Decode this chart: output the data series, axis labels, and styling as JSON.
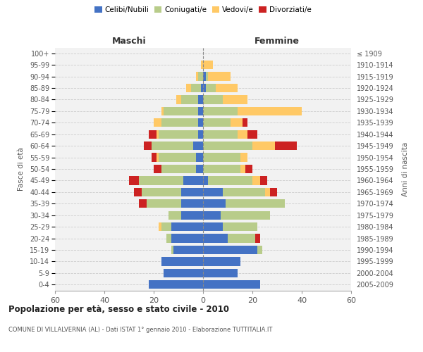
{
  "age_groups": [
    "0-4",
    "5-9",
    "10-14",
    "15-19",
    "20-24",
    "25-29",
    "30-34",
    "35-39",
    "40-44",
    "45-49",
    "50-54",
    "55-59",
    "60-64",
    "65-69",
    "70-74",
    "75-79",
    "80-84",
    "85-89",
    "90-94",
    "95-99",
    "100+"
  ],
  "birth_years": [
    "2005-2009",
    "2000-2004",
    "1995-1999",
    "1990-1994",
    "1985-1989",
    "1980-1984",
    "1975-1979",
    "1970-1974",
    "1965-1969",
    "1960-1964",
    "1955-1959",
    "1950-1954",
    "1945-1949",
    "1940-1944",
    "1935-1939",
    "1930-1934",
    "1925-1929",
    "1920-1924",
    "1915-1919",
    "1910-1914",
    "≤ 1909"
  ],
  "male": {
    "celibi": [
      22,
      16,
      17,
      12,
      13,
      13,
      9,
      9,
      9,
      8,
      3,
      3,
      4,
      2,
      2,
      2,
      2,
      1,
      0,
      0,
      0
    ],
    "coniugati": [
      0,
      0,
      0,
      1,
      2,
      4,
      5,
      14,
      16,
      18,
      14,
      15,
      17,
      16,
      15,
      14,
      7,
      4,
      2,
      0,
      0
    ],
    "vedovi": [
      0,
      0,
      0,
      0,
      0,
      1,
      0,
      0,
      0,
      0,
      0,
      1,
      0,
      1,
      3,
      1,
      2,
      2,
      1,
      1,
      0
    ],
    "divorziati": [
      0,
      0,
      0,
      0,
      0,
      0,
      0,
      3,
      3,
      4,
      3,
      2,
      3,
      3,
      0,
      0,
      0,
      0,
      0,
      0,
      0
    ]
  },
  "female": {
    "nubili": [
      23,
      14,
      15,
      22,
      10,
      8,
      7,
      9,
      8,
      2,
      0,
      0,
      0,
      0,
      0,
      0,
      0,
      1,
      1,
      0,
      0
    ],
    "coniugate": [
      0,
      0,
      0,
      2,
      11,
      14,
      20,
      24,
      17,
      18,
      15,
      15,
      20,
      14,
      11,
      14,
      8,
      4,
      1,
      0,
      0
    ],
    "vedove": [
      0,
      0,
      0,
      0,
      0,
      0,
      0,
      0,
      2,
      3,
      2,
      3,
      9,
      4,
      5,
      26,
      10,
      9,
      9,
      4,
      0
    ],
    "divorziate": [
      0,
      0,
      0,
      0,
      2,
      0,
      0,
      0,
      3,
      3,
      3,
      0,
      9,
      4,
      2,
      0,
      0,
      0,
      0,
      0,
      0
    ]
  },
  "colors": {
    "celibi_nubili": "#4472c4",
    "coniugati": "#b8cc8a",
    "vedovi": "#ffc966",
    "divorziati": "#cc2222"
  },
  "xlim": 60,
  "title": "Popolazione per età, sesso e stato civile - 2010",
  "subtitle": "COMUNE DI VILLALVERNIA (AL) - Dati ISTAT 1° gennaio 2010 - Elaborazione TUTTITALIA.IT",
  "ylabel_left": "Fasce di età",
  "ylabel_right": "Anni di nascita",
  "xlabel_left": "Maschi",
  "xlabel_right": "Femmine",
  "legend_labels": [
    "Celibi/Nubili",
    "Coniugati/e",
    "Vedovi/e",
    "Divorziati/e"
  ],
  "bg_color": "#f2f2f2",
  "fig_bg": "#ffffff"
}
